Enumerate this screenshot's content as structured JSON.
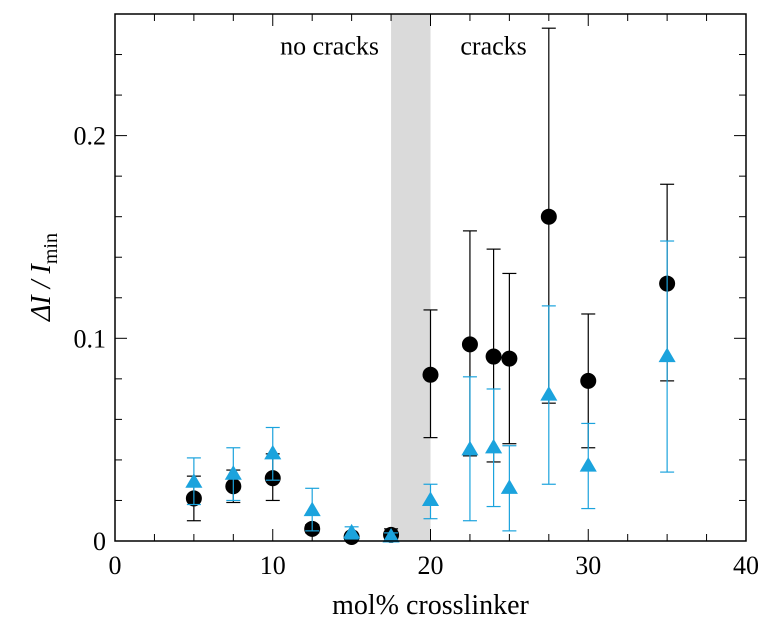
{
  "chart_data": {
    "type": "scatter",
    "xlabel": "mol% crosslinker",
    "ylabel": {
      "prefix": "ΔI / I",
      "subscript": "min"
    },
    "xlim": [
      0,
      40
    ],
    "ylim": [
      0,
      0.26
    ],
    "x_ticks": [
      0,
      10,
      20,
      30,
      40
    ],
    "x_tick_labels": [
      "0",
      "10",
      "20",
      "30",
      "40"
    ],
    "y_ticks": [
      0,
      0.1,
      0.2
    ],
    "y_tick_labels": [
      "0",
      "0.1",
      "0.2"
    ],
    "shaded_region": {
      "x0": 17.5,
      "x1": 20,
      "color": "#dadada"
    },
    "annotations": [
      {
        "text": "no cracks",
        "x": 13.6,
        "y": 0.24
      },
      {
        "text": "cracks",
        "x": 24.0,
        "y": 0.24
      }
    ],
    "grid": false,
    "series": [
      {
        "marker": "circle",
        "color": "#000000",
        "points": [
          {
            "x": 5,
            "y": 0.021,
            "low": 0.01,
            "high": 0.032
          },
          {
            "x": 7.5,
            "y": 0.027,
            "low": 0.019,
            "high": 0.035
          },
          {
            "x": 10,
            "y": 0.031,
            "low": 0.02,
            "high": 0.043
          },
          {
            "x": 12.5,
            "y": 0.006,
            "low": 0.004,
            "high": 0.008
          },
          {
            "x": 15,
            "y": 0.002,
            "low": 0.001,
            "high": 0.003
          },
          {
            "x": 17.5,
            "y": 0.003,
            "low": 0.001,
            "high": 0.006
          },
          {
            "x": 20,
            "y": 0.082,
            "low": 0.051,
            "high": 0.114
          },
          {
            "x": 22.5,
            "y": 0.097,
            "low": 0.042,
            "high": 0.153
          },
          {
            "x": 24,
            "y": 0.091,
            "low": 0.039,
            "high": 0.144
          },
          {
            "x": 25,
            "y": 0.09,
            "low": 0.048,
            "high": 0.132
          },
          {
            "x": 27.5,
            "y": 0.16,
            "low": 0.068,
            "high": 0.253
          },
          {
            "x": 30,
            "y": 0.079,
            "low": 0.046,
            "high": 0.112
          },
          {
            "x": 35,
            "y": 0.127,
            "low": 0.079,
            "high": 0.176
          }
        ]
      },
      {
        "marker": "triangle",
        "color": "#1ba3dd",
        "points": [
          {
            "x": 5,
            "y": 0.029,
            "low": 0.018,
            "high": 0.041
          },
          {
            "x": 7.5,
            "y": 0.033,
            "low": 0.02,
            "high": 0.046
          },
          {
            "x": 10,
            "y": 0.043,
            "low": 0.03,
            "high": 0.056
          },
          {
            "x": 12.5,
            "y": 0.015,
            "low": 0.005,
            "high": 0.026
          },
          {
            "x": 15,
            "y": 0.004,
            "low": 0.001,
            "high": 0.007
          },
          {
            "x": 17.5,
            "y": 0.002,
            "low": 0.0,
            "high": 0.004
          },
          {
            "x": 20,
            "y": 0.02,
            "low": 0.011,
            "high": 0.028
          },
          {
            "x": 22.5,
            "y": 0.045,
            "low": 0.01,
            "high": 0.081
          },
          {
            "x": 24,
            "y": 0.046,
            "low": 0.017,
            "high": 0.075
          },
          {
            "x": 25,
            "y": 0.026,
            "low": 0.005,
            "high": 0.047
          },
          {
            "x": 27.5,
            "y": 0.072,
            "low": 0.028,
            "high": 0.116
          },
          {
            "x": 30,
            "y": 0.037,
            "low": 0.016,
            "high": 0.058
          },
          {
            "x": 35,
            "y": 0.091,
            "low": 0.034,
            "high": 0.148
          }
        ]
      }
    ]
  }
}
